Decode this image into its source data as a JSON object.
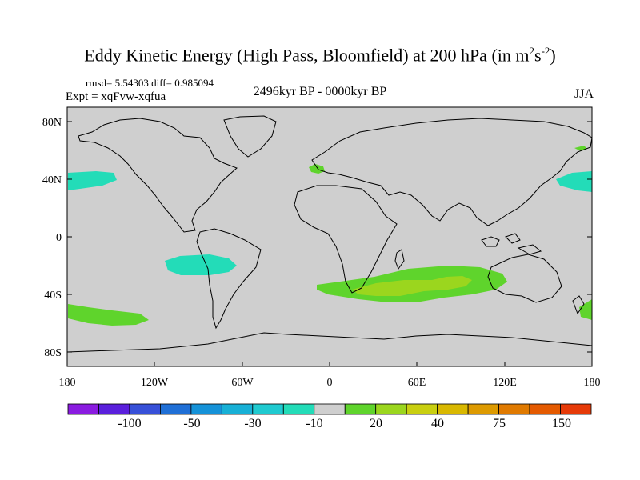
{
  "title": {
    "main": "Eddy Kinetic Energy (High Pass, Bloomfield) at 200 hPa (in m",
    "sup1": "2",
    "s": "s",
    "sup2": "-2",
    "close": ")"
  },
  "stats": "rmsd= 5.54303 diff= 0.985094",
  "experiment": "Expt = xqFvw-xqfua",
  "period": "2496kyr BP - 0000kyr BP",
  "season": "JJA",
  "axes": {
    "lat_labels": [
      "80N",
      "40N",
      "0",
      "40S",
      "80S"
    ],
    "lon_labels": [
      "180",
      "120W",
      "60W",
      "0",
      "60E",
      "120E",
      "180"
    ]
  },
  "anomalies": [
    {
      "region": "North Pacific (west)",
      "value_range": "-10 to -30"
    },
    {
      "region": "North Pacific (east)",
      "value_range": "-10 to -30"
    },
    {
      "region": "South East Pacific",
      "value_range": "-10 to -30"
    },
    {
      "region": "South Pacific",
      "value_range": "20 to 30"
    },
    {
      "region": "South Indian Ocean",
      "value_range": "20 to 40"
    },
    {
      "region": "Iberia",
      "value_range": "20 to 30"
    }
  ],
  "colorbar": {
    "colors": [
      "#8a1be0",
      "#5a1fdc",
      "#3750d8",
      "#1f6fd6",
      "#1592d8",
      "#17b0d6",
      "#1fcad0",
      "#23dcb8",
      "#cfcfcf",
      "#5fd42c",
      "#9bd61e",
      "#c9cf10",
      "#d9b800",
      "#dd9a00",
      "#e07a00",
      "#e45a00",
      "#e63a08"
    ],
    "labels": [
      "-100",
      "-50",
      "-30",
      "-10",
      "20",
      "40",
      "75",
      "150"
    ]
  },
  "colors": {
    "land_ocean": "#cfcfcf",
    "neg_anomaly": "#23dcb8",
    "pos_anomaly": "#5fd42c",
    "pos_anomaly_strong": "#9bd61e"
  }
}
